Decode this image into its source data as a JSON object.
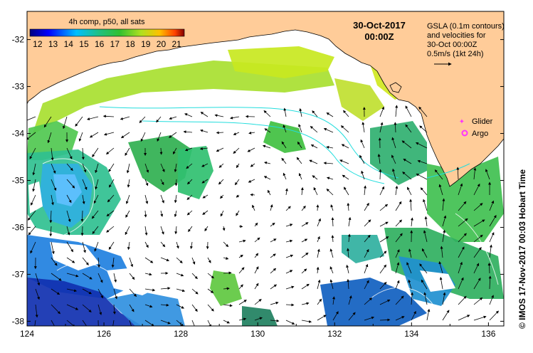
{
  "map": {
    "date_title": "30-Oct-2017",
    "time_title": "00:00Z",
    "colorbar": {
      "title": "4h comp, p50, all sats",
      "ticks": [
        "12",
        "13",
        "14",
        "15",
        "16",
        "17",
        "18",
        "19",
        "20",
        "21"
      ],
      "vmin": 11.5,
      "vmax": 21.5
    },
    "legend": {
      "line1": "GSLA (0.1m contours)",
      "line2": "and velocities for",
      "line3": "30-Oct 00:00Z",
      "line4": "0.5m/s (1kt 24h)"
    },
    "markers": {
      "glider_label": "Glider",
      "argo_label": "Argo",
      "glider_color": "#ff33ff",
      "argo_color": "#ff33ff"
    },
    "credit": "© IMOS 17-Nov-2017 00:03 Hobart Time",
    "x_ticks": [
      "124",
      "126",
      "128",
      "130",
      "132",
      "134",
      "136"
    ],
    "y_ticks": [
      "-32",
      "-33",
      "-34",
      "-35",
      "-36",
      "-37",
      "-38"
    ],
    "lon_range": [
      124,
      136.4
    ],
    "lat_range": [
      -38.1,
      -31.4
    ],
    "land_color": "#ffcc99",
    "ocean_color": "#ffffff",
    "contour_color": "#22dddd"
  }
}
